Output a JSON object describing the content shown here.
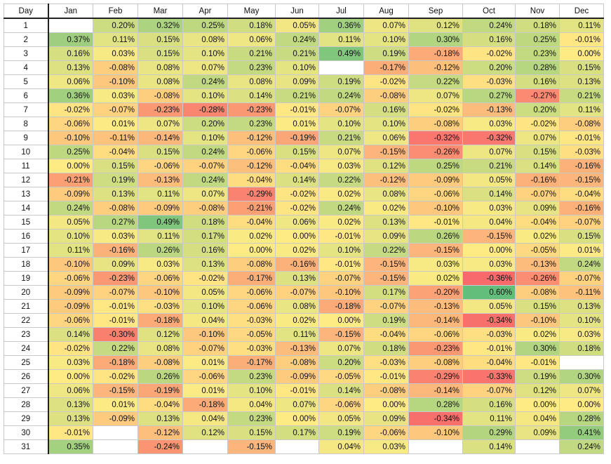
{
  "chart_data": {
    "type": "heatmap",
    "corner_label": "Day",
    "columns": [
      "Jan",
      "Feb",
      "Mar",
      "Apr",
      "May",
      "Jun",
      "Jul",
      "Aug",
      "Sep",
      "Oct",
      "Nov",
      "Dec"
    ],
    "rows": [
      1,
      2,
      3,
      4,
      5,
      6,
      7,
      8,
      9,
      10,
      11,
      12,
      13,
      14,
      15,
      16,
      17,
      18,
      19,
      20,
      21,
      22,
      23,
      24,
      25,
      26,
      27,
      28,
      29,
      30,
      31
    ],
    "value_format": "percent_2dp",
    "color_scale": {
      "low": "#f8696b",
      "mid": "#ffeb84",
      "high": "#63be7b",
      "min": -0.36,
      "max": 0.6
    },
    "values": [
      [
        null,
        0.2,
        0.32,
        0.25,
        0.18,
        0.05,
        0.36,
        0.07,
        0.12,
        0.24,
        0.18,
        0.11
      ],
      [
        0.37,
        0.11,
        0.15,
        0.08,
        0.06,
        0.24,
        0.11,
        0.1,
        0.3,
        0.16,
        0.25,
        -0.01
      ],
      [
        0.16,
        0.03,
        0.15,
        0.1,
        0.21,
        0.21,
        0.49,
        0.19,
        -0.18,
        -0.02,
        0.23,
        0.0
      ],
      [
        0.13,
        -0.08,
        0.08,
        0.07,
        0.23,
        0.1,
        null,
        -0.17,
        -0.12,
        0.2,
        0.28,
        0.15
      ],
      [
        0.06,
        -0.1,
        0.08,
        0.24,
        0.08,
        0.09,
        0.19,
        -0.02,
        0.22,
        -0.03,
        0.16,
        0.13
      ],
      [
        0.36,
        0.03,
        -0.08,
        0.1,
        0.14,
        0.21,
        0.24,
        -0.08,
        0.07,
        0.27,
        -0.27,
        0.21
      ],
      [
        -0.02,
        -0.07,
        -0.23,
        -0.28,
        -0.23,
        -0.01,
        -0.07,
        0.16,
        -0.02,
        -0.13,
        0.2,
        0.11
      ],
      [
        -0.06,
        0.01,
        0.07,
        0.2,
        0.23,
        0.01,
        0.1,
        0.1,
        -0.08,
        0.03,
        -0.02,
        -0.08
      ],
      [
        -0.1,
        -0.11,
        -0.14,
        0.1,
        -0.12,
        -0.19,
        0.21,
        0.06,
        -0.32,
        -0.32,
        0.07,
        -0.01
      ],
      [
        0.25,
        -0.04,
        0.15,
        0.24,
        -0.06,
        0.15,
        0.07,
        -0.15,
        -0.26,
        0.07,
        0.15,
        -0.03
      ],
      [
        0.0,
        0.15,
        -0.06,
        -0.07,
        -0.12,
        -0.04,
        0.03,
        0.12,
        0.25,
        0.21,
        0.14,
        -0.16
      ],
      [
        -0.21,
        0.19,
        -0.13,
        0.24,
        -0.04,
        0.14,
        0.22,
        -0.12,
        -0.09,
        0.05,
        -0.16,
        -0.15
      ],
      [
        -0.09,
        0.13,
        0.11,
        0.07,
        -0.29,
        -0.02,
        0.02,
        0.08,
        -0.06,
        0.14,
        -0.07,
        -0.04
      ],
      [
        0.24,
        -0.08,
        -0.09,
        -0.08,
        -0.21,
        -0.02,
        0.24,
        0.02,
        -0.1,
        0.03,
        0.09,
        -0.16
      ],
      [
        0.05,
        0.27,
        0.49,
        0.18,
        -0.04,
        0.06,
        0.02,
        0.13,
        -0.01,
        0.04,
        -0.04,
        -0.07
      ],
      [
        0.1,
        0.03,
        0.11,
        0.17,
        0.02,
        0.0,
        -0.01,
        0.09,
        0.26,
        -0.15,
        0.02,
        0.15
      ],
      [
        0.11,
        -0.16,
        0.26,
        0.16,
        0.0,
        0.02,
        0.1,
        0.22,
        -0.15,
        0.0,
        -0.05,
        0.01
      ],
      [
        -0.1,
        0.09,
        0.03,
        0.13,
        -0.08,
        -0.16,
        -0.01,
        -0.15,
        0.03,
        0.03,
        -0.13,
        0.24
      ],
      [
        -0.06,
        -0.23,
        -0.06,
        -0.02,
        -0.17,
        0.13,
        -0.07,
        -0.15,
        0.02,
        -0.36,
        -0.26,
        -0.07
      ],
      [
        -0.09,
        -0.07,
        -0.1,
        0.05,
        -0.06,
        -0.07,
        -0.1,
        0.17,
        -0.2,
        0.6,
        -0.08,
        -0.11
      ],
      [
        -0.09,
        -0.01,
        -0.03,
        0.1,
        -0.06,
        0.08,
        -0.18,
        -0.07,
        -0.13,
        0.05,
        0.15,
        0.13
      ],
      [
        -0.06,
        -0.01,
        -0.18,
        0.04,
        -0.03,
        0.02,
        0.0,
        0.19,
        -0.14,
        -0.34,
        -0.1,
        0.1
      ],
      [
        0.14,
        -0.3,
        0.12,
        -0.1,
        -0.05,
        0.11,
        -0.15,
        -0.04,
        -0.06,
        -0.03,
        0.02,
        0.03
      ],
      [
        -0.02,
        0.22,
        0.08,
        -0.07,
        -0.03,
        -0.13,
        0.07,
        0.18,
        -0.23,
        -0.01,
        0.3,
        0.18
      ],
      [
        0.03,
        -0.18,
        -0.08,
        0.01,
        -0.17,
        -0.08,
        0.2,
        -0.03,
        -0.08,
        -0.04,
        -0.01,
        null
      ],
      [
        0.0,
        -0.02,
        0.26,
        -0.06,
        0.23,
        -0.09,
        -0.05,
        -0.01,
        -0.29,
        -0.33,
        0.19,
        0.3
      ],
      [
        0.06,
        -0.15,
        -0.19,
        0.01,
        0.1,
        -0.01,
        0.14,
        -0.08,
        -0.14,
        -0.07,
        0.12,
        0.07
      ],
      [
        0.13,
        0.01,
        -0.04,
        -0.18,
        0.04,
        0.07,
        -0.06,
        0.0,
        0.28,
        0.16,
        0.0,
        0.0
      ],
      [
        0.13,
        -0.09,
        0.13,
        0.04,
        0.23,
        0.0,
        0.05,
        0.09,
        -0.34,
        0.11,
        0.04,
        0.28
      ],
      [
        -0.01,
        null,
        -0.12,
        0.12,
        0.15,
        0.17,
        0.19,
        -0.06,
        -0.1,
        0.29,
        0.09,
        0.41
      ],
      [
        0.35,
        null,
        -0.24,
        null,
        -0.15,
        null,
        0.04,
        0.03,
        null,
        0.14,
        null,
        0.24
      ]
    ]
  }
}
